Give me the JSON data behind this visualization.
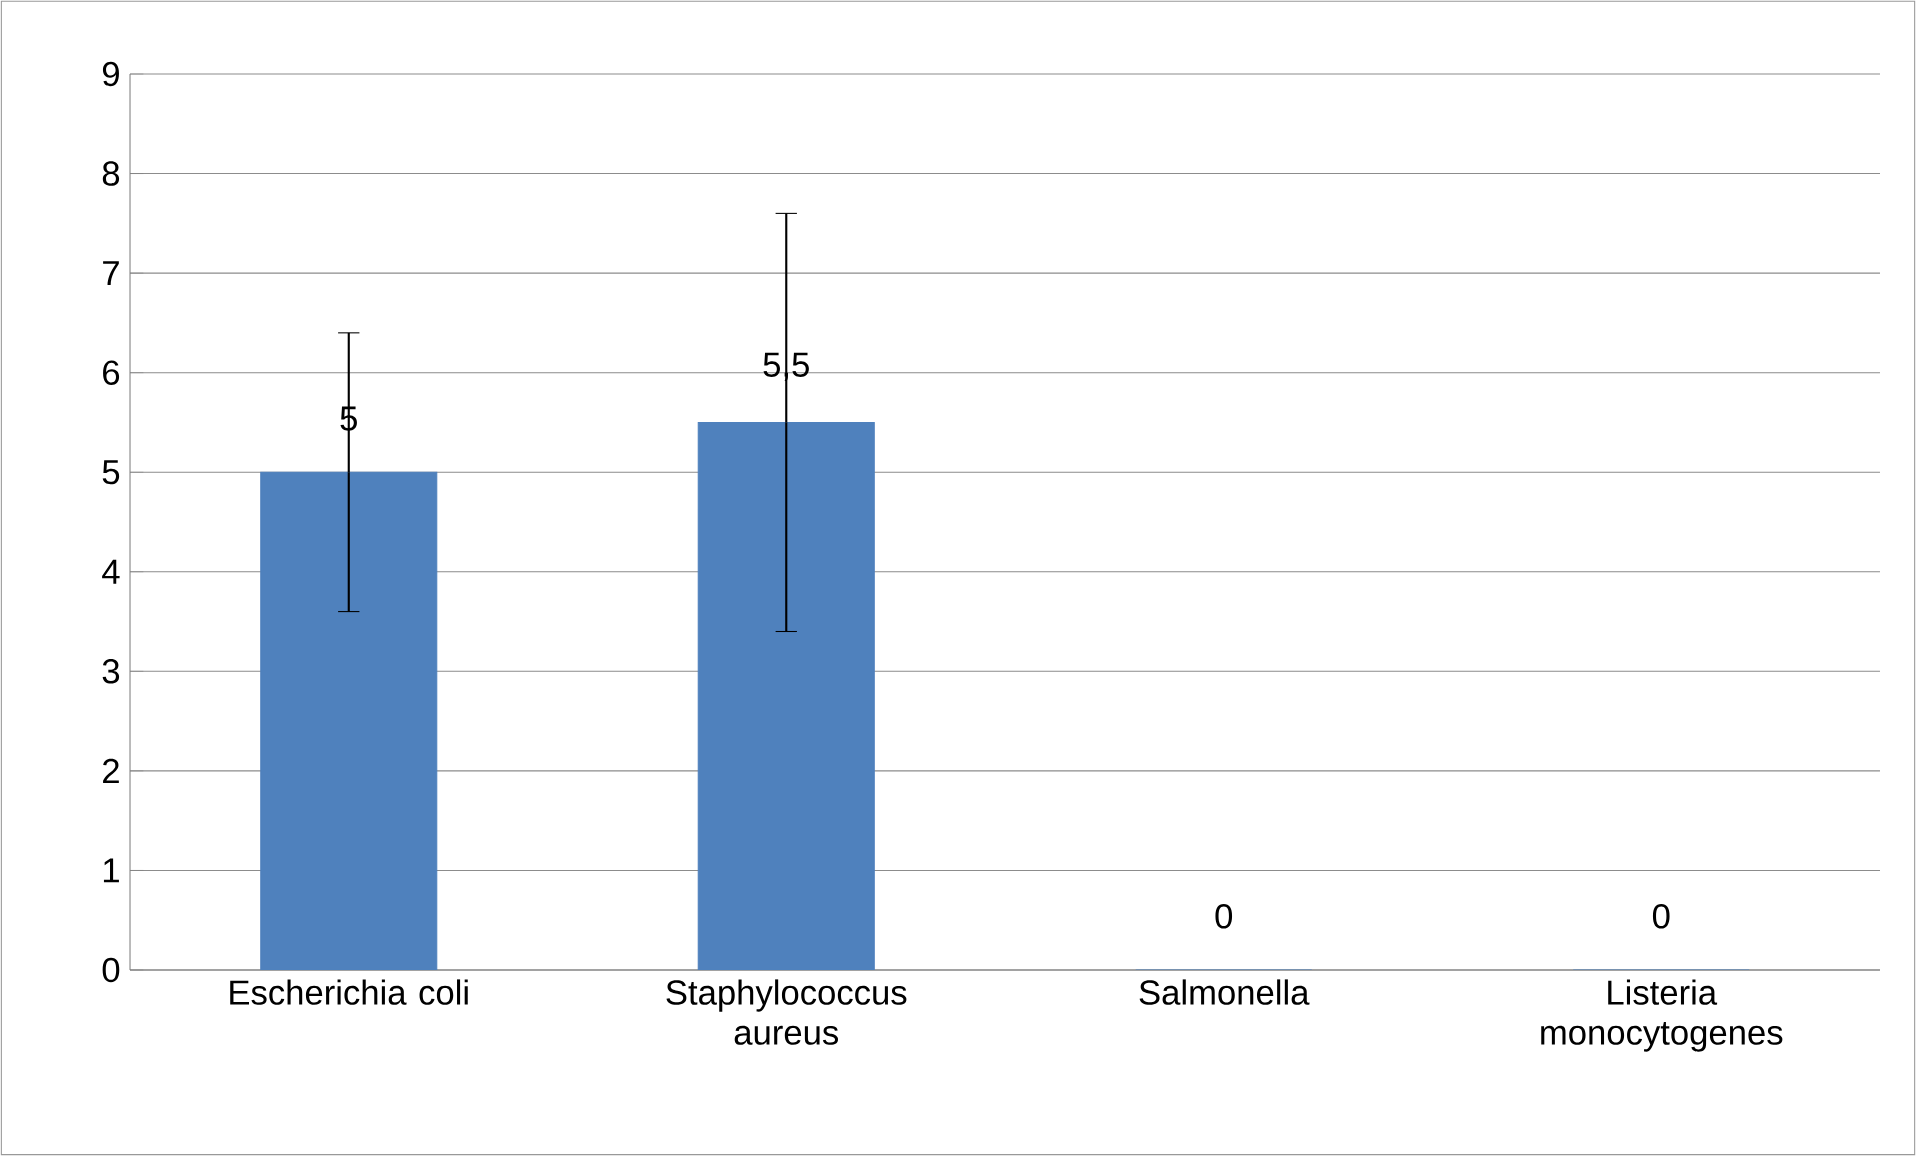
{
  "chart_data": {
    "type": "bar",
    "categories": [
      "Escherichia coli",
      "Staphylococcus aureus",
      "Salmonella",
      "Listeria monocytogenes"
    ],
    "values": [
      5,
      5.5,
      0,
      0
    ],
    "errors": [
      1.4,
      2.1,
      null,
      null
    ],
    "value_labels": [
      "5",
      "5,5",
      "0",
      "0"
    ],
    "color": "#4f81bd",
    "ylim": [
      0,
      9
    ],
    "yticks": [
      0,
      1,
      2,
      3,
      4,
      5,
      6,
      7,
      8,
      9
    ],
    "grid": "y"
  }
}
